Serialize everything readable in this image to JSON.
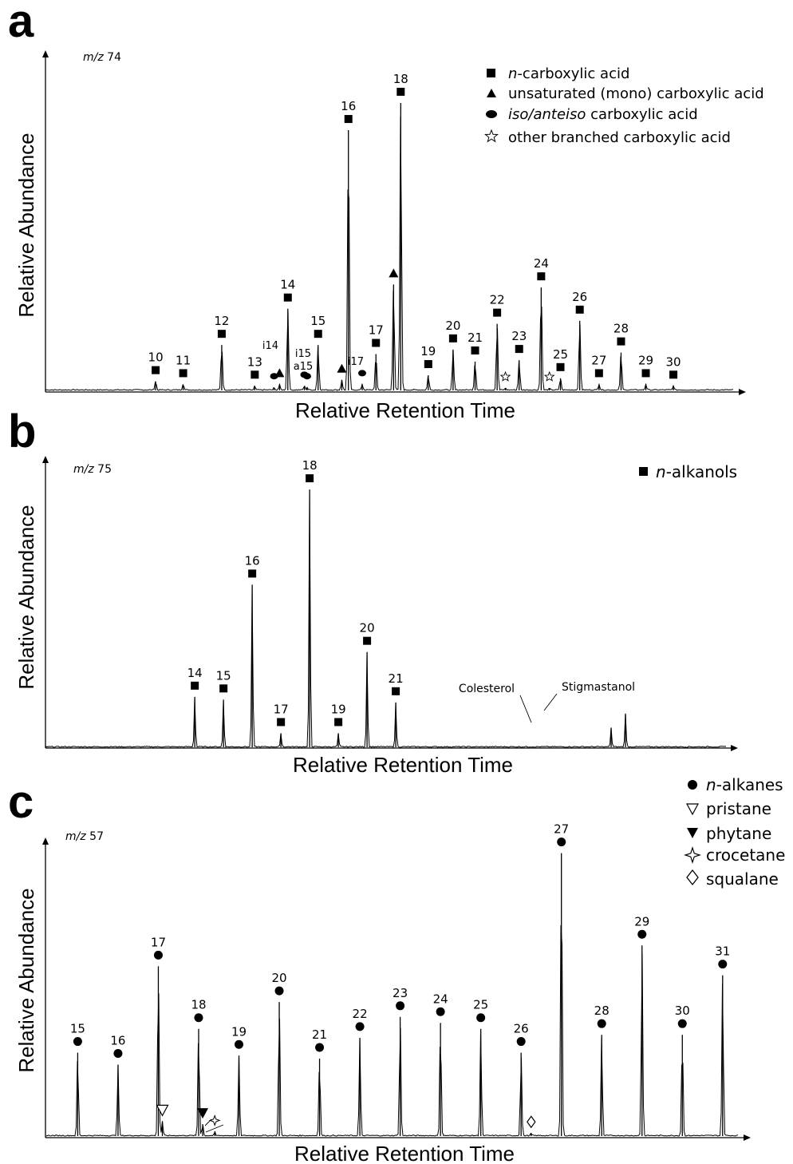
{
  "panels": [
    {
      "panel_label": "a",
      "mz_prefix": "m/z",
      "mz_value": "74",
      "ylabel": "Relative Abundance",
      "xlabel": "Relative Retention Time",
      "legend": [
        {
          "marker": "square",
          "italic": "n",
          "text": "-carboxylic acid"
        },
        {
          "marker": "triangle",
          "italic": "",
          "text": "unsaturated (mono) carboxylic acid"
        },
        {
          "marker": "ellipse",
          "italic": "iso/anteiso",
          "text": " carboxylic acid"
        },
        {
          "marker": "star",
          "italic": "",
          "text": "other branched carboxylic acid"
        }
      ],
      "branched_labels": [
        "i14",
        "i15",
        "a15",
        "i17"
      ]
    },
    {
      "panel_label": "b",
      "mz_prefix": "m/z",
      "mz_value": "75",
      "ylabel": "Relative Abundance",
      "xlabel": "Relative Retention Time",
      "legend": [
        {
          "marker": "square",
          "italic": "n",
          "text": "-alkanols"
        }
      ],
      "annotations": [
        "Colesterol",
        "Stigmastanol"
      ]
    },
    {
      "panel_label": "c",
      "mz_prefix": "m/z",
      "mz_value": "57",
      "ylabel": "Relative Abundance",
      "xlabel": "Relative Retention Time",
      "legend": [
        {
          "marker": "circle",
          "italic": "n",
          "text": "-alkanes"
        },
        {
          "marker": "tri-down-open",
          "italic": "",
          "text": "pristane"
        },
        {
          "marker": "tri-down-filled",
          "italic": "",
          "text": "phytane"
        },
        {
          "marker": "star4",
          "italic": "",
          "text": "crocetane"
        },
        {
          "marker": "diamond",
          "italic": "",
          "text": "squalane"
        }
      ]
    }
  ],
  "chart_data": [
    {
      "type": "line",
      "panel": "a",
      "xlabel": "Relative Retention Time",
      "ylabel": "Relative Abundance",
      "peaks": [
        {
          "label": "10",
          "marker": "square",
          "x": 2.0,
          "y": 3.0
        },
        {
          "label": "11",
          "marker": "square",
          "x": 2.5,
          "y": 2.0
        },
        {
          "label": "12",
          "marker": "square",
          "x": 3.2,
          "y": 15.0
        },
        {
          "label": "13",
          "marker": "square",
          "x": 3.8,
          "y": 1.5
        },
        {
          "label": "14",
          "marker": "square",
          "x": 4.4,
          "y": 27.0
        },
        {
          "label": "15",
          "marker": "square",
          "x": 4.95,
          "y": 15.0
        },
        {
          "label": "16",
          "marker": "square",
          "x": 5.5,
          "y": 86.0
        },
        {
          "label": "17",
          "marker": "square",
          "x": 6.0,
          "y": 12.0
        },
        {
          "label": "18",
          "marker": "square",
          "x": 6.45,
          "y": 95.0
        },
        {
          "label": "19",
          "marker": "square",
          "x": 6.95,
          "y": 5.0
        },
        {
          "label": "20",
          "marker": "square",
          "x": 7.4,
          "y": 13.5
        },
        {
          "label": "21",
          "marker": "square",
          "x": 7.8,
          "y": 9.5
        },
        {
          "label": "22",
          "marker": "square",
          "x": 8.2,
          "y": 22.0
        },
        {
          "label": "23",
          "marker": "square",
          "x": 8.6,
          "y": 10.0
        },
        {
          "label": "24",
          "marker": "square",
          "x": 9.0,
          "y": 34.0
        },
        {
          "label": "25",
          "marker": "square",
          "x": 9.35,
          "y": 4.0
        },
        {
          "label": "26",
          "marker": "square",
          "x": 9.7,
          "y": 23.0
        },
        {
          "label": "27",
          "marker": "square",
          "x": 10.05,
          "y": 2.0
        },
        {
          "label": "28",
          "marker": "square",
          "x": 10.45,
          "y": 12.5
        },
        {
          "label": "29",
          "marker": "square",
          "x": 10.9,
          "y": 2.0
        },
        {
          "label": "30",
          "marker": "square",
          "x": 11.4,
          "y": 1.5
        },
        {
          "label": "",
          "marker": "triangle",
          "x": 4.25,
          "y": 2.0
        },
        {
          "label": "",
          "marker": "triangle",
          "x": 5.38,
          "y": 3.5
        },
        {
          "label": "",
          "marker": "triangle",
          "x": 6.32,
          "y": 35.0
        },
        {
          "label": "i14",
          "marker": "ellipse",
          "x": 4.15,
          "y": 1.0
        },
        {
          "label": "i15",
          "marker": "ellipse",
          "x": 4.7,
          "y": 1.5
        },
        {
          "label": "a15",
          "marker": "ellipse",
          "x": 4.75,
          "y": 1.0
        },
        {
          "label": "i17",
          "marker": "ellipse",
          "x": 5.75,
          "y": 2.0
        },
        {
          "label": "",
          "marker": "star",
          "x": 8.35,
          "y": 0.8
        },
        {
          "label": "",
          "marker": "star",
          "x": 9.15,
          "y": 0.8
        }
      ]
    },
    {
      "type": "line",
      "panel": "b",
      "xlabel": "Relative Retention Time",
      "ylabel": "Relative Abundance",
      "peaks": [
        {
          "label": "14",
          "marker": "square",
          "x": 14,
          "y": 18.0
        },
        {
          "label": "15",
          "marker": "square",
          "x": 15,
          "y": 17.0
        },
        {
          "label": "16",
          "marker": "square",
          "x": 16,
          "y": 58.0
        },
        {
          "label": "17",
          "marker": "square",
          "x": 17,
          "y": 5.0
        },
        {
          "label": "18",
          "marker": "square",
          "x": 18,
          "y": 92.0
        },
        {
          "label": "19",
          "marker": "square",
          "x": 19,
          "y": 5.0
        },
        {
          "label": "20",
          "marker": "square",
          "x": 20,
          "y": 34.0
        },
        {
          "label": "21",
          "marker": "square",
          "x": 21,
          "y": 16.0
        },
        {
          "label": "Colesterol",
          "marker": "none",
          "x": 28.5,
          "y": 7.0
        },
        {
          "label": "Stigmastanol",
          "marker": "none",
          "x": 29.0,
          "y": 12.0
        }
      ]
    },
    {
      "type": "line",
      "panel": "c",
      "xlabel": "Relative Retention Time",
      "ylabel": "Relative Abundance",
      "peaks": [
        {
          "label": "15",
          "marker": "circle",
          "x": 15,
          "y": 28.0
        },
        {
          "label": "16",
          "marker": "circle",
          "x": 16,
          "y": 24.0
        },
        {
          "label": "17",
          "marker": "circle",
          "x": 17,
          "y": 57.0
        },
        {
          "label": "18",
          "marker": "circle",
          "x": 18,
          "y": 36.0
        },
        {
          "label": "19",
          "marker": "circle",
          "x": 19,
          "y": 27.0
        },
        {
          "label": "20",
          "marker": "circle",
          "x": 20,
          "y": 45.0
        },
        {
          "label": "21",
          "marker": "circle",
          "x": 21,
          "y": 26.0
        },
        {
          "label": "22",
          "marker": "circle",
          "x": 22,
          "y": 33.0
        },
        {
          "label": "23",
          "marker": "circle",
          "x": 23,
          "y": 40.0
        },
        {
          "label": "24",
          "marker": "circle",
          "x": 24,
          "y": 38.0
        },
        {
          "label": "25",
          "marker": "circle",
          "x": 25,
          "y": 36.0
        },
        {
          "label": "26",
          "marker": "circle",
          "x": 26,
          "y": 28.0
        },
        {
          "label": "27",
          "marker": "circle",
          "x": 27,
          "y": 95.0
        },
        {
          "label": "28",
          "marker": "circle",
          "x": 28,
          "y": 34.0
        },
        {
          "label": "29",
          "marker": "circle",
          "x": 29,
          "y": 64.0
        },
        {
          "label": "30",
          "marker": "circle",
          "x": 30,
          "y": 34.0
        },
        {
          "label": "31",
          "marker": "circle",
          "x": 31,
          "y": 54.0
        },
        {
          "label": "",
          "marker": "tri-down-open",
          "x": 17.1,
          "y": 5.0
        },
        {
          "label": "",
          "marker": "tri-down-filled",
          "x": 18.1,
          "y": 4.0
        },
        {
          "label": "",
          "marker": "star4",
          "x": 18.4,
          "y": 1.5
        },
        {
          "label": "",
          "marker": "diamond",
          "x": 26.25,
          "y": 1.0
        }
      ]
    }
  ]
}
